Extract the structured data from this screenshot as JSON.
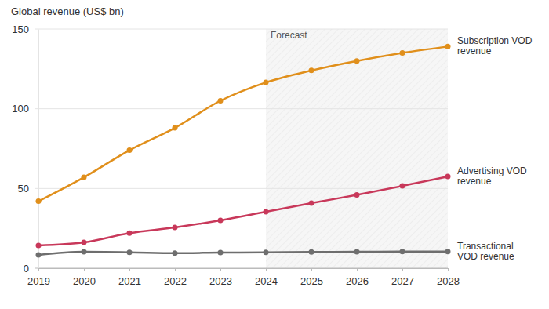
{
  "chart_data": {
    "type": "line",
    "title": "Global revenue (US$ bn)",
    "x": [
      2019,
      2020,
      2021,
      2022,
      2023,
      2024,
      2025,
      2026,
      2027,
      2028
    ],
    "xlim": [
      2019,
      2028
    ],
    "xticks": [
      2019,
      2020,
      2021,
      2022,
      2023,
      2024,
      2025,
      2026,
      2027,
      2028
    ],
    "ylim": [
      0,
      150
    ],
    "yticks": [
      0,
      50,
      100,
      150
    ],
    "grid": true,
    "marker": "circle",
    "annotations": [
      {
        "text": "Forecast",
        "x": [
          2024,
          2028
        ]
      }
    ],
    "series": [
      {
        "name": "Subscription VOD revenue",
        "color": "#e08f1b",
        "values": [
          42,
          57,
          74,
          88,
          105,
          116.5,
          124,
          130,
          135,
          139
        ]
      },
      {
        "name": "Advertising VOD revenue",
        "color": "#c8385a",
        "values": [
          14.3,
          16.2,
          22,
          25.6,
          30,
          35.4,
          40.8,
          46,
          51.6,
          57.5
        ]
      },
      {
        "name": "Transactional VOD revenue",
        "color": "#6e6e6e",
        "values": [
          8.4,
          10.3,
          10,
          9.5,
          9.8,
          10,
          10.2,
          10.3,
          10.4,
          10.4
        ]
      }
    ]
  }
}
